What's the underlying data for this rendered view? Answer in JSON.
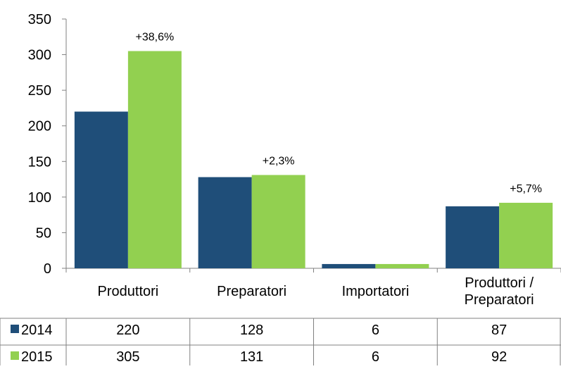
{
  "chart_data": {
    "type": "bar",
    "categories": [
      [
        "Produttori"
      ],
      [
        "Preparatori"
      ],
      [
        "Importatori"
      ],
      [
        "Produttori /",
        "Preparatori"
      ]
    ],
    "series": [
      {
        "name": "2014",
        "values": [
          220,
          128,
          6,
          87
        ],
        "color": "#1f4e79"
      },
      {
        "name": "2015",
        "values": [
          305,
          131,
          6,
          92
        ],
        "color": "#92d050"
      }
    ],
    "annotations": [
      "+38,6%",
      "+2,3%",
      "",
      "+5,7%"
    ],
    "y_ticks": [
      "0",
      "50",
      "100",
      "150",
      "200",
      "250",
      "300",
      "350"
    ],
    "ylim": [
      0,
      350
    ],
    "grid": false,
    "legend": "data table below chart",
    "data_table": {
      "rows": [
        {
          "label": "2014",
          "cells": [
            "220",
            "128",
            "6",
            "87"
          ]
        },
        {
          "label": "2015",
          "cells": [
            "305",
            "131",
            "6",
            "92"
          ]
        }
      ]
    }
  }
}
